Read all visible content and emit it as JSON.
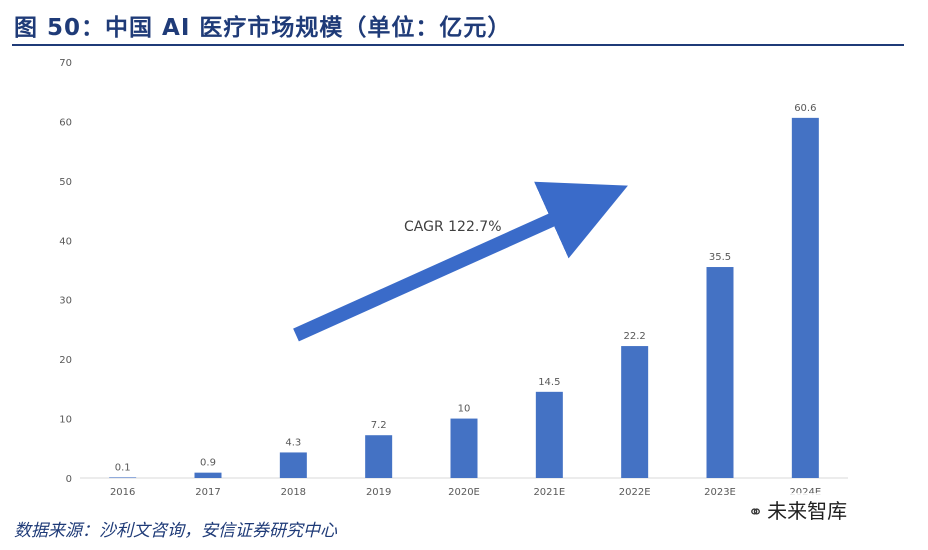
{
  "header": {
    "title": "图 50：中国 AI 医疗市场规模（单位：亿元）"
  },
  "footer": {
    "source": "数据来源：沙利文咨询，安信证券研究中心"
  },
  "watermark": {
    "icon": "wechat-icon",
    "text": "未来智库"
  },
  "colors": {
    "bar": "#4472c4",
    "arrow": "#3a6bc9",
    "axis": "#d9d9d9",
    "label": "#595959",
    "title": "#1f3b78"
  },
  "chart_data": {
    "type": "bar",
    "title": "中国 AI 医疗市场规模（单位：亿元）",
    "xlabel": "",
    "ylabel": "",
    "categories": [
      "2016",
      "2017",
      "2018",
      "2019",
      "2020E",
      "2021E",
      "2022E",
      "2023E",
      "2024E"
    ],
    "values": [
      0.1,
      0.9,
      4.3,
      7.2,
      10,
      14.5,
      22.2,
      35.5,
      60.6
    ],
    "value_labels": [
      "0.1",
      "0.9",
      "4.3",
      "7.2",
      "10",
      "14.5",
      "22.2",
      "35.5",
      "60.6"
    ],
    "ylim": [
      0,
      70
    ],
    "yticks": [
      0,
      10,
      20,
      30,
      40,
      50,
      60,
      70
    ],
    "grid": false,
    "legend": "none",
    "annotation": "CAGR 122.7%"
  }
}
